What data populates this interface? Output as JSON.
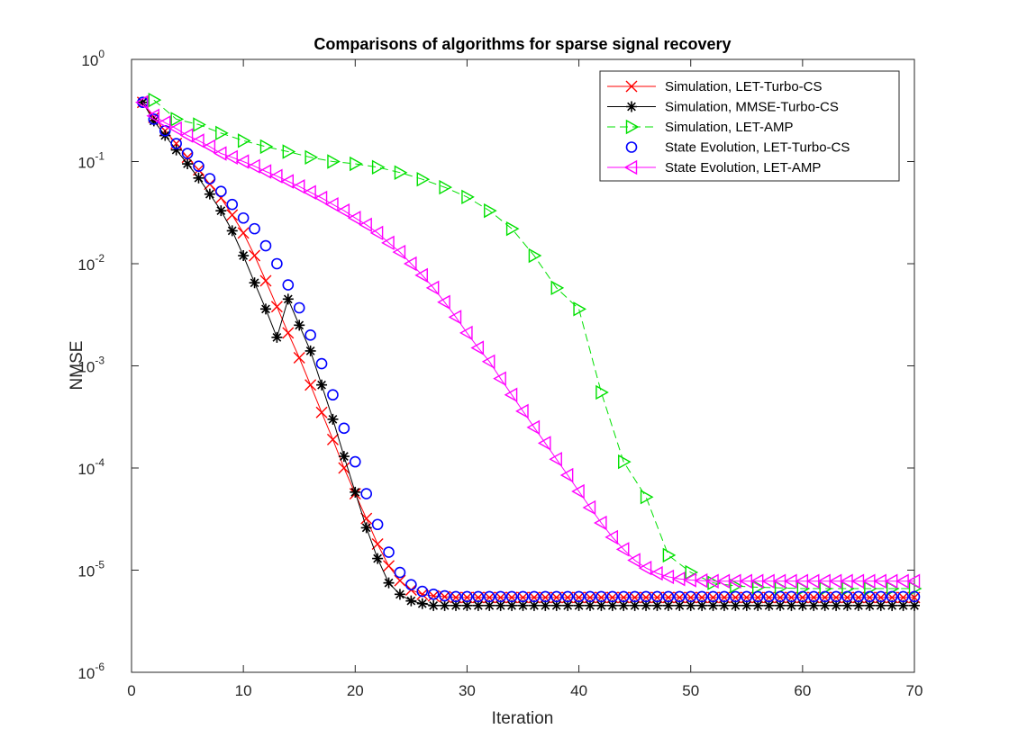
{
  "chart_data": {
    "type": "line",
    "title": "Comparisons of algorithms for sparse signal recovery",
    "xlabel": "Iteration",
    "ylabel": "NMSE",
    "xlim": [
      0,
      70
    ],
    "ylim": [
      1e-06,
      1
    ],
    "yscale": "log",
    "grid": false,
    "legend_position": "top-right",
    "x_ticks": [
      0,
      10,
      20,
      30,
      40,
      50,
      60,
      70
    ],
    "y_ticks": [
      {
        "value": 1e-06,
        "base": "10",
        "exp": "-6"
      },
      {
        "value": 1e-05,
        "base": "10",
        "exp": "-5"
      },
      {
        "value": 0.0001,
        "base": "10",
        "exp": "-4"
      },
      {
        "value": 0.001,
        "base": "10",
        "exp": "-3"
      },
      {
        "value": 0.01,
        "base": "10",
        "exp": "-2"
      },
      {
        "value": 0.1,
        "base": "10",
        "exp": "-1"
      },
      {
        "value": 1,
        "base": "10",
        "exp": "0"
      }
    ],
    "series": [
      {
        "name": "Simulation, LET-Turbo-CS",
        "color": "#ff0000",
        "marker": "x",
        "line": "solid",
        "x": [
          1,
          2,
          3,
          4,
          5,
          6,
          7,
          8,
          9,
          10,
          11,
          12,
          13,
          14,
          15,
          16,
          17,
          18,
          19,
          20,
          21,
          22,
          23,
          24,
          25,
          26,
          27,
          28,
          29,
          30,
          31,
          32,
          33,
          34,
          35,
          36,
          37,
          38,
          39,
          40,
          41,
          42,
          43,
          44,
          45,
          46,
          47,
          48,
          49,
          50,
          51,
          52,
          53,
          54,
          55,
          56,
          57,
          58,
          59,
          60,
          61,
          62,
          63,
          64,
          65,
          66,
          67,
          68,
          69,
          70
        ],
        "y": [
          0.38,
          0.27,
          0.2,
          0.15,
          0.11,
          0.083,
          0.06,
          0.044,
          0.03,
          0.02,
          0.012,
          0.0068,
          0.0038,
          0.0021,
          0.0012,
          0.00065,
          0.00035,
          0.00019,
          0.0001,
          5.6e-05,
          3.2e-05,
          1.8e-05,
          1.1e-05,
          7.9e-06,
          6.4e-06,
          5.8e-06,
          5.6e-06,
          5.5e-06,
          5.4e-06,
          5.4e-06,
          5.4e-06,
          5.4e-06,
          5.4e-06,
          5.4e-06,
          5.4e-06,
          5.4e-06,
          5.4e-06,
          5.4e-06,
          5.4e-06,
          5.4e-06,
          5.4e-06,
          5.4e-06,
          5.4e-06,
          5.4e-06,
          5.4e-06,
          5.4e-06,
          5.4e-06,
          5.4e-06,
          5.4e-06,
          5.4e-06,
          5.4e-06,
          5.4e-06,
          5.4e-06,
          5.4e-06,
          5.4e-06,
          5.4e-06,
          5.4e-06,
          5.4e-06,
          5.4e-06,
          5.4e-06,
          5.4e-06,
          5.4e-06,
          5.4e-06,
          5.4e-06,
          5.4e-06,
          5.4e-06,
          5.4e-06,
          5.4e-06,
          5.4e-06,
          5.4e-06
        ]
      },
      {
        "name": "Simulation, MMSE-Turbo-CS",
        "color": "#000000",
        "marker": "asterisk",
        "line": "solid",
        "x": [
          1,
          2,
          3,
          4,
          5,
          6,
          7,
          8,
          9,
          10,
          11,
          12,
          13,
          14,
          15,
          16,
          17,
          18,
          19,
          20,
          21,
          22,
          23,
          24,
          25,
          26,
          27,
          28,
          29,
          30,
          31,
          32,
          33,
          34,
          35,
          36,
          37,
          38,
          39,
          40,
          41,
          42,
          43,
          44,
          45,
          46,
          47,
          48,
          49,
          50,
          51,
          52,
          53,
          54,
          55,
          56,
          57,
          58,
          59,
          60,
          61,
          62,
          63,
          64,
          65,
          66,
          67,
          68,
          69,
          70
        ],
        "y": [
          0.38,
          0.25,
          0.18,
          0.13,
          0.095,
          0.069,
          0.048,
          0.033,
          0.021,
          0.012,
          0.0065,
          0.0036,
          0.0019,
          0.00095,
          0.00047,
          0.00023,
          0.00011,
          5.3e-05,
          2.5e-05,
          1.2e-05,
          6e-06,
          5e-06,
          4.7e-06,
          4.6e-06,
          4.5e-06,
          4.5e-06,
          4.5e-06,
          4.5e-06,
          4.5e-06,
          4.5e-06,
          4.5e-06,
          4.5e-06,
          4.5e-06,
          4.5e-06,
          4.5e-06,
          4.5e-06,
          4.5e-06,
          4.5e-06,
          4.5e-06,
          4.5e-06,
          4.5e-06,
          4.5e-06,
          4.5e-06,
          4.5e-06,
          4.5e-06,
          4.5e-06,
          4.5e-06,
          4.5e-06,
          4.5e-06,
          4.5e-06,
          4.5e-06,
          4.5e-06,
          4.5e-06,
          4.5e-06,
          4.5e-06,
          4.5e-06,
          4.5e-06,
          4.5e-06,
          4.5e-06,
          4.5e-06,
          4.5e-06,
          4.5e-06,
          4.5e-06,
          4.5e-06,
          4.5e-06,
          4.5e-06,
          4.5e-06,
          4.5e-06,
          4.5e-06,
          4.5e-06
        ],
        "y_override": {
          "14": 0.0045,
          "15": 0.0025,
          "16": 0.0014,
          "17": 0.00065,
          "18": 0.0003,
          "19": 0.00013,
          "20": 5.8e-05,
          "21": 2.6e-05,
          "22": 1.3e-05,
          "23": 7.5e-06,
          "24": 5.8e-06,
          "25": 5e-06,
          "26": 4.7e-06
        }
      },
      {
        "name": "Simulation, LET-AMP",
        "color": "#00e000",
        "marker": "triangle-right",
        "line": "dashed",
        "x": [
          2,
          4,
          6,
          8,
          10,
          12,
          14,
          16,
          18,
          20,
          22,
          24,
          26,
          28,
          30,
          32,
          34,
          36,
          38,
          40,
          42,
          44,
          46,
          48,
          50,
          52,
          54,
          56,
          58,
          60,
          62,
          64,
          66,
          68,
          70
        ],
        "y": [
          0.4,
          0.26,
          0.23,
          0.19,
          0.16,
          0.14,
          0.125,
          0.11,
          0.1,
          0.095,
          0.088,
          0.078,
          0.067,
          0.056,
          0.045,
          0.033,
          0.022,
          0.012,
          0.0058,
          0.0036,
          0.00055,
          0.000115,
          5.2e-05,
          1.4e-05,
          9.5e-06,
          7.5e-06,
          7e-06,
          6.8e-06,
          6.7e-06,
          6.6e-06,
          6.6e-06,
          6.6e-06,
          6.6e-06,
          6.6e-06,
          6.6e-06
        ]
      },
      {
        "name": "State Evolution, LET-Turbo-CS",
        "color": "#0000ff",
        "marker": "circle",
        "line": "none",
        "x": [
          1,
          2,
          3,
          4,
          5,
          6,
          7,
          8,
          9,
          10,
          11,
          12,
          13,
          14,
          15,
          16,
          17,
          18,
          19,
          20,
          21,
          22,
          23,
          24,
          25,
          26,
          27,
          28,
          29,
          30,
          31,
          32,
          33,
          34,
          35,
          36,
          37,
          38,
          39,
          40,
          41,
          42,
          43,
          44,
          45,
          46,
          47,
          48,
          49,
          50,
          51,
          52,
          53,
          54,
          55,
          56,
          57,
          58,
          59,
          60,
          61,
          62,
          63,
          64,
          65,
          66,
          67,
          68,
          69,
          70
        ],
        "y": [
          0.38,
          0.26,
          0.2,
          0.15,
          0.12,
          0.09,
          0.068,
          0.051,
          0.038,
          0.028,
          0.022,
          0.015,
          0.01,
          0.0062,
          0.0037,
          0.002,
          0.00105,
          0.00052,
          0.000245,
          0.000115,
          5.6e-05,
          2.8e-05,
          1.5e-05,
          9.5e-06,
          7.2e-06,
          6.2e-06,
          5.8e-06,
          5.6e-06,
          5.5e-06,
          5.5e-06,
          5.5e-06,
          5.5e-06,
          5.5e-06,
          5.5e-06,
          5.5e-06,
          5.5e-06,
          5.5e-06,
          5.5e-06,
          5.5e-06,
          5.5e-06,
          5.5e-06,
          5.5e-06,
          5.5e-06,
          5.5e-06,
          5.5e-06,
          5.5e-06,
          5.5e-06,
          5.5e-06,
          5.5e-06,
          5.5e-06,
          5.5e-06,
          5.5e-06,
          5.5e-06,
          5.5e-06,
          5.5e-06,
          5.5e-06,
          5.5e-06,
          5.5e-06,
          5.5e-06,
          5.5e-06,
          5.5e-06,
          5.5e-06,
          5.5e-06,
          5.5e-06,
          5.5e-06,
          5.5e-06,
          5.5e-06,
          5.5e-06,
          5.5e-06,
          5.5e-06
        ]
      },
      {
        "name": "State Evolution, LET-AMP",
        "color": "#ff00ff",
        "marker": "triangle-left",
        "line": "solid",
        "x": [
          1,
          2,
          3,
          4,
          5,
          6,
          7,
          8,
          9,
          10,
          11,
          12,
          13,
          14,
          15,
          16,
          17,
          18,
          19,
          20,
          21,
          22,
          23,
          24,
          25,
          26,
          27,
          28,
          29,
          30,
          31,
          32,
          33,
          34,
          35,
          36,
          37,
          38,
          39,
          40,
          41,
          42,
          43,
          44,
          45,
          46,
          47,
          48,
          49,
          50,
          51,
          52,
          53,
          54,
          55,
          56,
          57,
          58,
          59,
          60,
          61,
          62,
          63,
          64,
          65,
          66,
          67,
          68,
          69,
          70
        ],
        "y": [
          0.38,
          0.28,
          0.24,
          0.21,
          0.18,
          0.16,
          0.14,
          0.12,
          0.11,
          0.1,
          0.09,
          0.08,
          0.072,
          0.064,
          0.057,
          0.05,
          0.044,
          0.038,
          0.033,
          0.028,
          0.024,
          0.02,
          0.016,
          0.013,
          0.01,
          0.0077,
          0.0058,
          0.0042,
          0.003,
          0.0021,
          0.0015,
          0.0011,
          0.00075,
          0.00052,
          0.00036,
          0.00025,
          0.000175,
          0.000122,
          8.5e-05,
          5.9e-05,
          4.1e-05,
          2.9e-05,
          2.1e-05,
          1.6e-05,
          1.25e-05,
          1.05e-05,
          9.3e-06,
          8.6e-06,
          8.2e-06,
          8e-06,
          7.9e-06,
          7.8e-06,
          7.8e-06,
          7.8e-06,
          7.8e-06,
          7.8e-06,
          7.8e-06,
          7.8e-06,
          7.8e-06,
          7.8e-06,
          7.8e-06,
          7.8e-06,
          7.8e-06,
          7.8e-06,
          7.8e-06,
          7.8e-06,
          7.8e-06,
          7.8e-06,
          7.8e-06,
          7.8e-06
        ]
      }
    ]
  }
}
